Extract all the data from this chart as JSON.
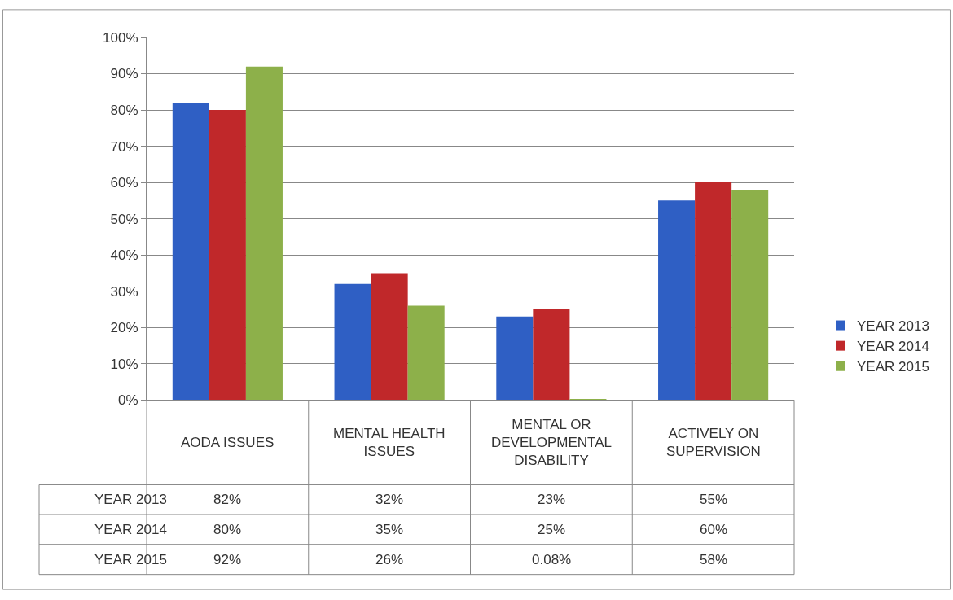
{
  "chart_data": {
    "type": "bar",
    "categories": [
      "AODA ISSUES",
      "MENTAL HEALTH ISSUES",
      "MENTAL OR DEVELOPMENTAL DISABILITY",
      "ACTIVELY ON SUPERVISION"
    ],
    "series": [
      {
        "name": "YEAR 2013",
        "color": "#2f5fc4",
        "values": [
          82,
          32,
          23,
          55
        ],
        "value_labels": [
          "82%",
          "32%",
          "23%",
          "55%"
        ]
      },
      {
        "name": "YEAR 2014",
        "color": "#c0282a",
        "values": [
          80,
          35,
          25,
          60
        ],
        "value_labels": [
          "80%",
          "35%",
          "25%",
          "60%"
        ]
      },
      {
        "name": "YEAR 2015",
        "color": "#8db04a",
        "values": [
          92,
          26,
          0.08,
          58
        ],
        "value_labels": [
          "92%",
          "26%",
          "0.08%",
          "58%"
        ]
      }
    ],
    "ylim": [
      0,
      100
    ],
    "yticks": [
      {
        "value": 0,
        "label": "0%"
      },
      {
        "value": 10,
        "label": "10%"
      },
      {
        "value": 20,
        "label": "20%"
      },
      {
        "value": 30,
        "label": "30%"
      },
      {
        "value": 40,
        "label": "40%"
      },
      {
        "value": 50,
        "label": "50%"
      },
      {
        "value": 60,
        "label": "60%"
      },
      {
        "value": 70,
        "label": "70%"
      },
      {
        "value": 80,
        "label": "80%"
      },
      {
        "value": 90,
        "label": "90%"
      },
      {
        "value": 100,
        "label": "100%"
      }
    ],
    "grid": "y",
    "legend": "right"
  }
}
